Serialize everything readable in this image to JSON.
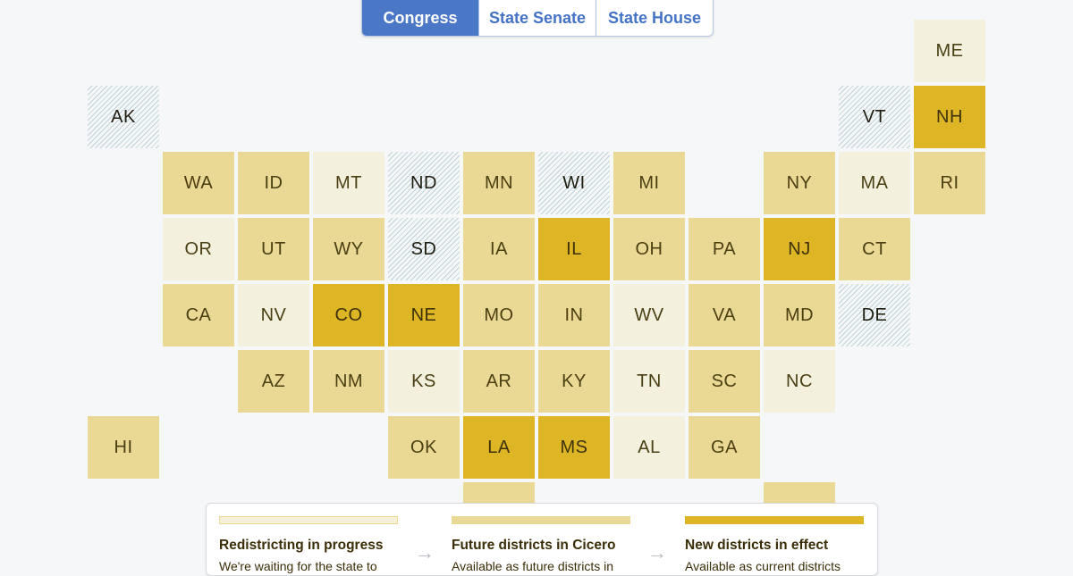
{
  "tabs": [
    {
      "label": "Congress",
      "active": true
    },
    {
      "label": "State Senate",
      "active": false
    },
    {
      "label": "State House",
      "active": false
    }
  ],
  "colors": {
    "redistricting_in_progress": "#f4f0de",
    "future_districts": "#ead994",
    "new_districts_in_effect": "#deb525",
    "no_redistricting_hatch": "#bcd3d7",
    "tab_active": "#4a77c6"
  },
  "states": [
    {
      "abbr": "ME",
      "col": 11,
      "row": 0,
      "status": "progress"
    },
    {
      "abbr": "AK",
      "col": 0,
      "row": 1,
      "status": "none"
    },
    {
      "abbr": "VT",
      "col": 10,
      "row": 1,
      "status": "none"
    },
    {
      "abbr": "NH",
      "col": 11,
      "row": 1,
      "status": "effect"
    },
    {
      "abbr": "WA",
      "col": 1,
      "row": 2,
      "status": "future"
    },
    {
      "abbr": "ID",
      "col": 2,
      "row": 2,
      "status": "future"
    },
    {
      "abbr": "MT",
      "col": 3,
      "row": 2,
      "status": "progress"
    },
    {
      "abbr": "ND",
      "col": 4,
      "row": 2,
      "status": "none"
    },
    {
      "abbr": "MN",
      "col": 5,
      "row": 2,
      "status": "future"
    },
    {
      "abbr": "WI",
      "col": 6,
      "row": 2,
      "status": "none"
    },
    {
      "abbr": "MI",
      "col": 7,
      "row": 2,
      "status": "future"
    },
    {
      "abbr": "NY",
      "col": 9,
      "row": 2,
      "status": "future"
    },
    {
      "abbr": "MA",
      "col": 10,
      "row": 2,
      "status": "progress"
    },
    {
      "abbr": "RI",
      "col": 11,
      "row": 2,
      "status": "future"
    },
    {
      "abbr": "OR",
      "col": 1,
      "row": 3,
      "status": "progress"
    },
    {
      "abbr": "UT",
      "col": 2,
      "row": 3,
      "status": "future"
    },
    {
      "abbr": "WY",
      "col": 3,
      "row": 3,
      "status": "future"
    },
    {
      "abbr": "SD",
      "col": 4,
      "row": 3,
      "status": "none"
    },
    {
      "abbr": "IA",
      "col": 5,
      "row": 3,
      "status": "future"
    },
    {
      "abbr": "IL",
      "col": 6,
      "row": 3,
      "status": "effect"
    },
    {
      "abbr": "OH",
      "col": 7,
      "row": 3,
      "status": "future"
    },
    {
      "abbr": "PA",
      "col": 8,
      "row": 3,
      "status": "future"
    },
    {
      "abbr": "NJ",
      "col": 9,
      "row": 3,
      "status": "effect"
    },
    {
      "abbr": "CT",
      "col": 10,
      "row": 3,
      "status": "future"
    },
    {
      "abbr": "CA",
      "col": 1,
      "row": 4,
      "status": "future"
    },
    {
      "abbr": "NV",
      "col": 2,
      "row": 4,
      "status": "progress"
    },
    {
      "abbr": "CO",
      "col": 3,
      "row": 4,
      "status": "effect"
    },
    {
      "abbr": "NE",
      "col": 4,
      "row": 4,
      "status": "effect"
    },
    {
      "abbr": "MO",
      "col": 5,
      "row": 4,
      "status": "future"
    },
    {
      "abbr": "IN",
      "col": 6,
      "row": 4,
      "status": "future"
    },
    {
      "abbr": "WV",
      "col": 7,
      "row": 4,
      "status": "progress"
    },
    {
      "abbr": "VA",
      "col": 8,
      "row": 4,
      "status": "future"
    },
    {
      "abbr": "MD",
      "col": 9,
      "row": 4,
      "status": "future"
    },
    {
      "abbr": "DE",
      "col": 10,
      "row": 4,
      "status": "none"
    },
    {
      "abbr": "AZ",
      "col": 2,
      "row": 5,
      "status": "future"
    },
    {
      "abbr": "NM",
      "col": 3,
      "row": 5,
      "status": "future"
    },
    {
      "abbr": "KS",
      "col": 4,
      "row": 5,
      "status": "progress"
    },
    {
      "abbr": "AR",
      "col": 5,
      "row": 5,
      "status": "future"
    },
    {
      "abbr": "KY",
      "col": 6,
      "row": 5,
      "status": "future"
    },
    {
      "abbr": "TN",
      "col": 7,
      "row": 5,
      "status": "progress"
    },
    {
      "abbr": "SC",
      "col": 8,
      "row": 5,
      "status": "future"
    },
    {
      "abbr": "NC",
      "col": 9,
      "row": 5,
      "status": "progress"
    },
    {
      "abbr": "HI",
      "col": 0,
      "row": 6,
      "status": "future"
    },
    {
      "abbr": "OK",
      "col": 4,
      "row": 6,
      "status": "future"
    },
    {
      "abbr": "LA",
      "col": 5,
      "row": 6,
      "status": "effect"
    },
    {
      "abbr": "MS",
      "col": 6,
      "row": 6,
      "status": "effect"
    },
    {
      "abbr": "AL",
      "col": 7,
      "row": 6,
      "status": "progress"
    },
    {
      "abbr": "GA",
      "col": 8,
      "row": 6,
      "status": "future"
    },
    {
      "abbr": "",
      "col": 5,
      "row": 7,
      "status": "future"
    },
    {
      "abbr": "",
      "col": 9,
      "row": 7,
      "status": "future"
    }
  ],
  "legend": {
    "items": [
      {
        "title": "Redistricting in progress",
        "desc": "We're waiting for the state to",
        "status": "progress"
      },
      {
        "title": "Future districts in Cicero",
        "desc": "Available as future districts in",
        "status": "future"
      },
      {
        "title": "New districts in effect",
        "desc": "Available as current districts",
        "status": "effect"
      }
    ],
    "arrow": "→"
  }
}
